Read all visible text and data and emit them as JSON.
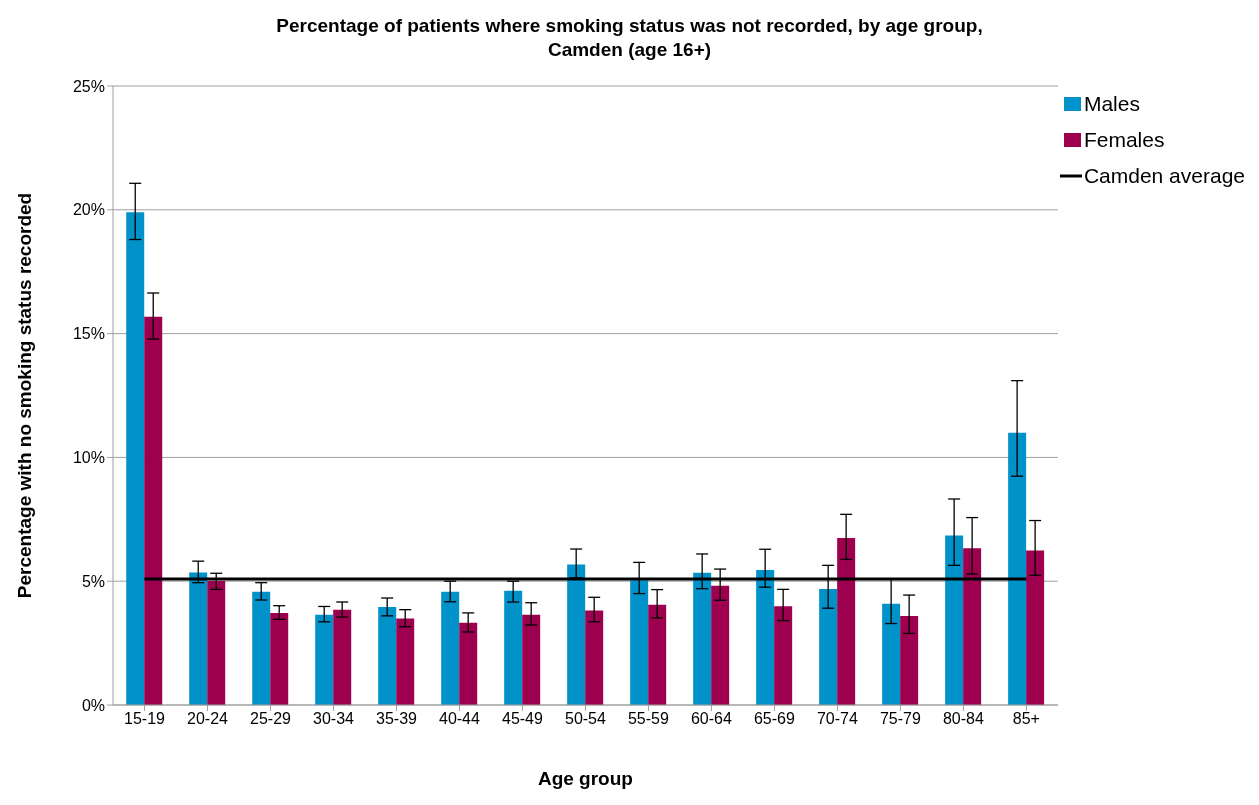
{
  "chart_data": {
    "type": "bar",
    "title": "Percentage of patients where smoking status was not recorded, by age group, Camden (age 16+)",
    "xlabel": "Age group",
    "ylabel": "Percentage with no smoking status recorded",
    "categories": [
      "15-19",
      "20-24",
      "25-29",
      "30-34",
      "35-39",
      "40-44",
      "45-49",
      "50-54",
      "55-59",
      "60-64",
      "65-69",
      "70-74",
      "75-79",
      "80-84",
      "85+"
    ],
    "series": [
      {
        "name": "Males",
        "color": "#0092c8",
        "values": [
          19.9,
          5.35,
          4.57,
          3.65,
          3.96,
          4.57,
          4.61,
          5.67,
          5.04,
          5.34,
          5.45,
          4.69,
          4.09,
          6.85,
          11.0
        ],
        "errors": [
          [
            18.8,
            21.07
          ],
          [
            4.94,
            5.81
          ],
          [
            4.24,
            4.94
          ],
          [
            3.36,
            3.98
          ],
          [
            3.6,
            4.32
          ],
          [
            4.17,
            5.0
          ],
          [
            4.16,
            5.0
          ],
          [
            5.14,
            6.3
          ],
          [
            4.5,
            5.76
          ],
          [
            4.7,
            6.1
          ],
          [
            4.76,
            6.29
          ],
          [
            3.91,
            5.64
          ],
          [
            3.29,
            5.09
          ],
          [
            5.64,
            8.32
          ],
          [
            9.24,
            13.1
          ]
        ]
      },
      {
        "name": "Females",
        "color": "#9e0050",
        "values": [
          15.68,
          5.01,
          3.72,
          3.85,
          3.49,
          3.32,
          3.65,
          3.82,
          4.05,
          4.82,
          3.99,
          6.74,
          3.59,
          6.33,
          6.24
        ],
        "errors": [
          [
            14.78,
            16.64
          ],
          [
            4.67,
            5.32
          ],
          [
            3.46,
            4.01
          ],
          [
            3.55,
            4.16
          ],
          [
            3.16,
            3.85
          ],
          [
            2.95,
            3.72
          ],
          [
            3.23,
            4.13
          ],
          [
            3.36,
            4.35
          ],
          [
            3.52,
            4.66
          ],
          [
            4.23,
            5.49
          ],
          [
            3.41,
            4.67
          ],
          [
            5.88,
            7.7
          ],
          [
            2.89,
            4.44
          ],
          [
            5.29,
            7.57
          ],
          [
            5.24,
            7.45
          ]
        ]
      },
      {
        "name": "Camden average",
        "type": "line",
        "color": "#000000",
        "values": [
          5.09,
          5.09,
          5.09,
          5.09,
          5.09,
          5.09,
          5.09,
          5.09,
          5.09,
          5.09,
          5.09,
          5.09,
          5.09,
          5.09,
          5.09
        ]
      }
    ],
    "ylim": [
      0,
      25
    ],
    "yticks": [
      {
        "value": 0,
        "label": "0%"
      },
      {
        "value": 5,
        "label": "5%"
      },
      {
        "value": 10,
        "label": "10%"
      },
      {
        "value": 15,
        "label": "15%"
      },
      {
        "value": 20,
        "label": "20%"
      },
      {
        "value": 25,
        "label": "25%"
      }
    ],
    "grid": "y",
    "legend": "top right"
  }
}
